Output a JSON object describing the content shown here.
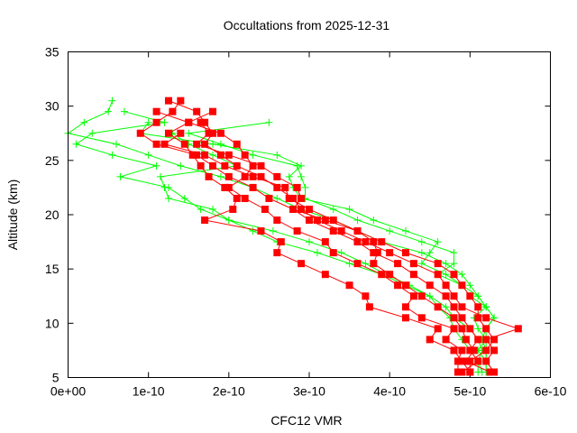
{
  "chart_data": {
    "type": "line",
    "title": "Occultations from 2025-12-31",
    "xlabel": "CFC12 VMR",
    "ylabel": "Altitude (km)",
    "xlim": [
      0,
      6e-10
    ],
    "ylim": [
      5,
      35
    ],
    "x_ticks": [
      "0e+00",
      "1e-10",
      "2e-10",
      "3e-10",
      "4e-10",
      "5e-10",
      "6e-10"
    ],
    "y_ticks": [
      "5",
      "10",
      "15",
      "20",
      "25",
      "30",
      "35"
    ],
    "grid": false,
    "legend": "none",
    "colors": {
      "red_series": "#ff0000",
      "green_series": "#00ff00"
    },
    "red_profiles": [
      [
        [
          1.4e-10,
          30.5
        ],
        [
          1.3e-10,
          29.5
        ],
        [
          1.1e-10,
          28.5
        ],
        [
          9e-11,
          27.5
        ],
        [
          1.1e-10,
          26.5
        ],
        [
          1.6e-10,
          25.5
        ],
        [
          1.8e-10,
          24.5
        ],
        [
          2e-10,
          23.5
        ],
        [
          2.3e-10,
          22.5
        ],
        [
          2.5e-10,
          21.5
        ],
        [
          2.8e-10,
          20.5
        ],
        [
          3e-10,
          19.5
        ],
        [
          3.3e-10,
          18.5
        ],
        [
          3.6e-10,
          17.5
        ],
        [
          3.8e-10,
          16.5
        ],
        [
          4.1e-10,
          15.5
        ],
        [
          4.3e-10,
          14.5
        ],
        [
          4.5e-10,
          13.5
        ],
        [
          4.7e-10,
          12.5
        ],
        [
          4.8e-10,
          11.5
        ],
        [
          4.9e-10,
          10.5
        ],
        [
          5e-10,
          9.5
        ],
        [
          5.1e-10,
          8.5
        ],
        [
          5e-10,
          7.5
        ],
        [
          5.1e-10,
          6.5
        ],
        [
          4.9e-10,
          5.5
        ]
      ],
      [
        [
          1.25e-10,
          30.5
        ],
        [
          1.6e-10,
          29.5
        ],
        [
          1.7e-10,
          28.5
        ],
        [
          1.8e-10,
          27.5
        ],
        [
          1.7e-10,
          26.5
        ],
        [
          1.9e-10,
          25.5
        ],
        [
          2.1e-10,
          24.5
        ],
        [
          2.4e-10,
          23.5
        ],
        [
          2.6e-10,
          22.5
        ],
        [
          2.8e-10,
          21.5
        ],
        [
          2.9e-10,
          20.5
        ],
        [
          3.1e-10,
          19.5
        ],
        [
          3.4e-10,
          18.5
        ],
        [
          3.7e-10,
          17.5
        ],
        [
          4e-10,
          16.5
        ],
        [
          4.3e-10,
          15.5
        ],
        [
          4.6e-10,
          14.5
        ],
        [
          4.7e-10,
          13.5
        ],
        [
          4.8e-10,
          12.5
        ],
        [
          4.9e-10,
          11.5
        ],
        [
          5.2e-10,
          10.5
        ],
        [
          5.6e-10,
          9.5
        ],
        [
          5.2e-10,
          8.5
        ],
        [
          5.3e-10,
          7.5
        ],
        [
          5.2e-10,
          6.5
        ],
        [
          5.3e-10,
          5.5
        ]
      ],
      [
        [
          1.8e-10,
          29.5
        ],
        [
          1.5e-10,
          28.5
        ],
        [
          1.25e-10,
          27.5
        ],
        [
          1.45e-10,
          26.5
        ],
        [
          1.55e-10,
          25.5
        ],
        [
          1.65e-10,
          24.5
        ],
        [
          1.75e-10,
          23.5
        ],
        [
          1.95e-10,
          22.5
        ],
        [
          2.1e-10,
          21.5
        ],
        [
          2.05e-10,
          20.5
        ],
        [
          1.7e-10,
          19.5
        ],
        [
          2.4e-10,
          18.5
        ],
        [
          2.65e-10,
          17.5
        ],
        [
          2.6e-10,
          16.5
        ],
        [
          2.9e-10,
          15.5
        ],
        [
          3.2e-10,
          14.5
        ],
        [
          3.5e-10,
          13.5
        ],
        [
          3.7e-10,
          12.5
        ],
        [
          3.75e-10,
          11.5
        ],
        [
          4.2e-10,
          10.5
        ],
        [
          4.6e-10,
          9.5
        ],
        [
          4.5e-10,
          8.5
        ],
        [
          4.8e-10,
          7.5
        ],
        [
          4.9e-10,
          6.5
        ],
        [
          5e-10,
          5.5
        ]
      ],
      [
        [
          1.65e-10,
          28.5
        ],
        [
          1.75e-10,
          27.5
        ],
        [
          1.6e-10,
          26.5
        ],
        [
          2e-10,
          25.5
        ],
        [
          2.4e-10,
          24.5
        ],
        [
          2.6e-10,
          23.5
        ],
        [
          2.85e-10,
          22.5
        ],
        [
          2.9e-10,
          21.5
        ],
        [
          2.8e-10,
          20.5
        ],
        [
          3.2e-10,
          19.5
        ],
        [
          3.6e-10,
          18.5
        ],
        [
          3.9e-10,
          17.5
        ],
        [
          4.2e-10,
          16.5
        ],
        [
          4.6e-10,
          15.5
        ],
        [
          4.8e-10,
          14.5
        ],
        [
          4.9e-10,
          13.5
        ],
        [
          5e-10,
          12.5
        ],
        [
          5.1e-10,
          11.5
        ],
        [
          5.1e-10,
          10.5
        ],
        [
          5.2e-10,
          9.5
        ],
        [
          5.3e-10,
          8.5
        ],
        [
          5.2e-10,
          7.5
        ],
        [
          5e-10,
          6.5
        ],
        [
          5e-10,
          5.5
        ]
      ],
      [
        [
          1.1e-10,
          29.5
        ],
        [
          1.5e-10,
          28.5
        ],
        [
          1.9e-10,
          27.5
        ],
        [
          2.1e-10,
          26.5
        ],
        [
          2.2e-10,
          25.5
        ],
        [
          2.3e-10,
          24.5
        ],
        [
          2.2e-10,
          23.5
        ],
        [
          2e-10,
          22.5
        ],
        [
          2.2e-10,
          21.5
        ],
        [
          2.45e-10,
          20.5
        ],
        [
          2.6e-10,
          19.5
        ],
        [
          2.85e-10,
          18.5
        ],
        [
          3.2e-10,
          17.5
        ],
        [
          3.3e-10,
          16.5
        ],
        [
          3.6e-10,
          15.5
        ],
        [
          3.9e-10,
          14.5
        ],
        [
          4.1e-10,
          13.5
        ],
        [
          4.3e-10,
          12.5
        ],
        [
          4.2e-10,
          11.5
        ],
        [
          4.4e-10,
          10.5
        ],
        [
          4.8e-10,
          9.5
        ],
        [
          4.7e-10,
          8.5
        ],
        [
          4.9e-10,
          7.5
        ],
        [
          4.85e-10,
          6.5
        ],
        [
          4.85e-10,
          5.5
        ]
      ],
      [
        [
          1.4e-10,
          27.5
        ],
        [
          1.2e-10,
          26.5
        ],
        [
          1.7e-10,
          25.5
        ],
        [
          1.95e-10,
          24.5
        ],
        [
          2.3e-10,
          23.5
        ],
        [
          2.7e-10,
          22.5
        ],
        [
          2.75e-10,
          21.5
        ],
        [
          3e-10,
          20.5
        ],
        [
          3.3e-10,
          19.5
        ],
        [
          3.6e-10,
          18.5
        ],
        [
          3.8e-10,
          17.5
        ],
        [
          3.85e-10,
          16.5
        ],
        [
          3.8e-10,
          15.5
        ],
        [
          4e-10,
          14.5
        ],
        [
          4.2e-10,
          13.5
        ],
        [
          4.4e-10,
          12.5
        ],
        [
          4.6e-10,
          11.5
        ],
        [
          4.8e-10,
          10.5
        ],
        [
          4.9e-10,
          9.5
        ],
        [
          4.95e-10,
          8.5
        ],
        [
          5.05e-10,
          7.5
        ],
        [
          4.95e-10,
          6.5
        ],
        [
          5.25e-10,
          5.5
        ]
      ]
    ],
    "green_profiles": [
      [
        [
          5.5e-11,
          30.5
        ],
        [
          5e-11,
          29.5
        ],
        [
          2e-11,
          28.5
        ],
        [
          0.0,
          27.5
        ],
        [
          6e-11,
          26.5
        ],
        [
          1e-10,
          25.5
        ],
        [
          1.4e-10,
          24.5
        ],
        [
          1.9e-10,
          23.5
        ],
        [
          2.3e-10,
          22.5
        ],
        [
          2.6e-10,
          21.5
        ],
        [
          2.9e-10,
          20.5
        ],
        [
          3.3e-10,
          19.5
        ],
        [
          3.6e-10,
          18.5
        ],
        [
          3.9e-10,
          17.5
        ],
        [
          4.4e-10,
          16.5
        ],
        [
          4.7e-10,
          15.5
        ],
        [
          4.9e-10,
          14.5
        ],
        [
          5e-10,
          13.5
        ],
        [
          5.1e-10,
          12.5
        ],
        [
          5.2e-10,
          11.5
        ],
        [
          5.3e-10,
          10.5
        ],
        [
          5.2e-10,
          9.5
        ],
        [
          5.2e-10,
          8.5
        ],
        [
          5.2e-10,
          7.5
        ],
        [
          5.2e-10,
          6.5
        ],
        [
          5.3e-10,
          5.5
        ]
      ],
      [
        [
          7e-11,
          29.5
        ],
        [
          1.2e-10,
          28.5
        ],
        [
          3e-11,
          27.5
        ],
        [
          1e-11,
          26.5
        ],
        [
          5.5e-11,
          25.5
        ],
        [
          1.1e-10,
          24.5
        ],
        [
          6.5e-11,
          23.5
        ],
        [
          1.25e-10,
          22.5
        ],
        [
          1.45e-10,
          21.5
        ],
        [
          1.65e-10,
          20.5
        ],
        [
          2e-10,
          19.5
        ],
        [
          2.55e-10,
          18.5
        ],
        [
          3e-10,
          17.5
        ],
        [
          3.4e-10,
          16.5
        ],
        [
          3.7e-10,
          15.5
        ],
        [
          3.95e-10,
          14.5
        ],
        [
          4.25e-10,
          13.5
        ],
        [
          4.5e-10,
          12.5
        ],
        [
          4.7e-10,
          11.5
        ],
        [
          4.8e-10,
          10.5
        ],
        [
          5e-10,
          9.5
        ],
        [
          5.1e-10,
          8.5
        ],
        [
          5.15e-10,
          7.5
        ],
        [
          5.1e-10,
          6.5
        ],
        [
          5.1e-10,
          5.5
        ]
      ],
      [
        [
          2.5e-10,
          28.5
        ],
        [
          1.5e-10,
          27.5
        ],
        [
          1.9e-10,
          26.5
        ],
        [
          2.3e-10,
          25.5
        ],
        [
          2.85e-10,
          24.5
        ],
        [
          2.9e-10,
          23.5
        ],
        [
          2.95e-10,
          22.5
        ],
        [
          2.95e-10,
          21.5
        ],
        [
          3.3e-10,
          20.5
        ],
        [
          3.6e-10,
          19.5
        ],
        [
          4e-10,
          18.5
        ],
        [
          4.4e-10,
          17.5
        ],
        [
          4.8e-10,
          16.5
        ],
        [
          4.8e-10,
          15.5
        ],
        [
          4.6e-10,
          14.5
        ],
        [
          4.9e-10,
          13.5
        ],
        [
          5.1e-10,
          12.5
        ],
        [
          5.2e-10,
          11.5
        ],
        [
          5.3e-10,
          10.5
        ],
        [
          5.2e-10,
          9.5
        ],
        [
          5.15e-10,
          8.5
        ],
        [
          5.2e-10,
          7.5
        ],
        [
          5.2e-10,
          6.5
        ],
        [
          5.2e-10,
          5.5
        ]
      ],
      [
        [
          1.3e-10,
          27.5
        ],
        [
          1.5e-10,
          26.5
        ],
        [
          1.8e-10,
          25.5
        ],
        [
          2.1e-10,
          24.5
        ],
        [
          1.15e-10,
          23.5
        ],
        [
          1.2e-10,
          22.5
        ],
        [
          1.25e-10,
          21.5
        ],
        [
          1.8e-10,
          20.5
        ],
        [
          2e-10,
          19.5
        ],
        [
          2.3e-10,
          18.5
        ],
        [
          2.6e-10,
          17.5
        ],
        [
          3.1e-10,
          16.5
        ],
        [
          3.5e-10,
          15.5
        ],
        [
          3.9e-10,
          14.5
        ],
        [
          4.2e-10,
          13.5
        ],
        [
          4.5e-10,
          12.5
        ],
        [
          4.6e-10,
          11.5
        ],
        [
          4.75e-10,
          10.5
        ],
        [
          4.8e-10,
          9.5
        ],
        [
          4.9e-10,
          8.5
        ],
        [
          5e-10,
          7.5
        ],
        [
          5.1e-10,
          6.5
        ],
        [
          5.15e-10,
          5.5
        ]
      ],
      [
        [
          1e-10,
          28.5
        ],
        [
          9e-11,
          27.5
        ],
        [
          1.8e-10,
          26.5
        ],
        [
          2.6e-10,
          25.5
        ],
        [
          2.9e-10,
          24.5
        ],
        [
          2.75e-10,
          23.5
        ],
        [
          2.8e-10,
          22.5
        ],
        [
          2.9e-10,
          21.5
        ],
        [
          3.5e-10,
          20.5
        ],
        [
          3.8e-10,
          19.5
        ],
        [
          4.2e-10,
          18.5
        ],
        [
          4.6e-10,
          17.5
        ],
        [
          4.5e-10,
          16.5
        ],
        [
          4.4e-10,
          15.5
        ],
        [
          4.7e-10,
          14.5
        ],
        [
          4.9e-10,
          13.5
        ],
        [
          5e-10,
          12.5
        ],
        [
          5.2e-10,
          11.5
        ],
        [
          5.05e-10,
          10.5
        ],
        [
          5.1e-10,
          9.5
        ],
        [
          5.2e-10,
          8.5
        ],
        [
          5.1e-10,
          7.5
        ],
        [
          5.2e-10,
          6.5
        ],
        [
          5.2e-10,
          5.5
        ]
      ]
    ]
  }
}
